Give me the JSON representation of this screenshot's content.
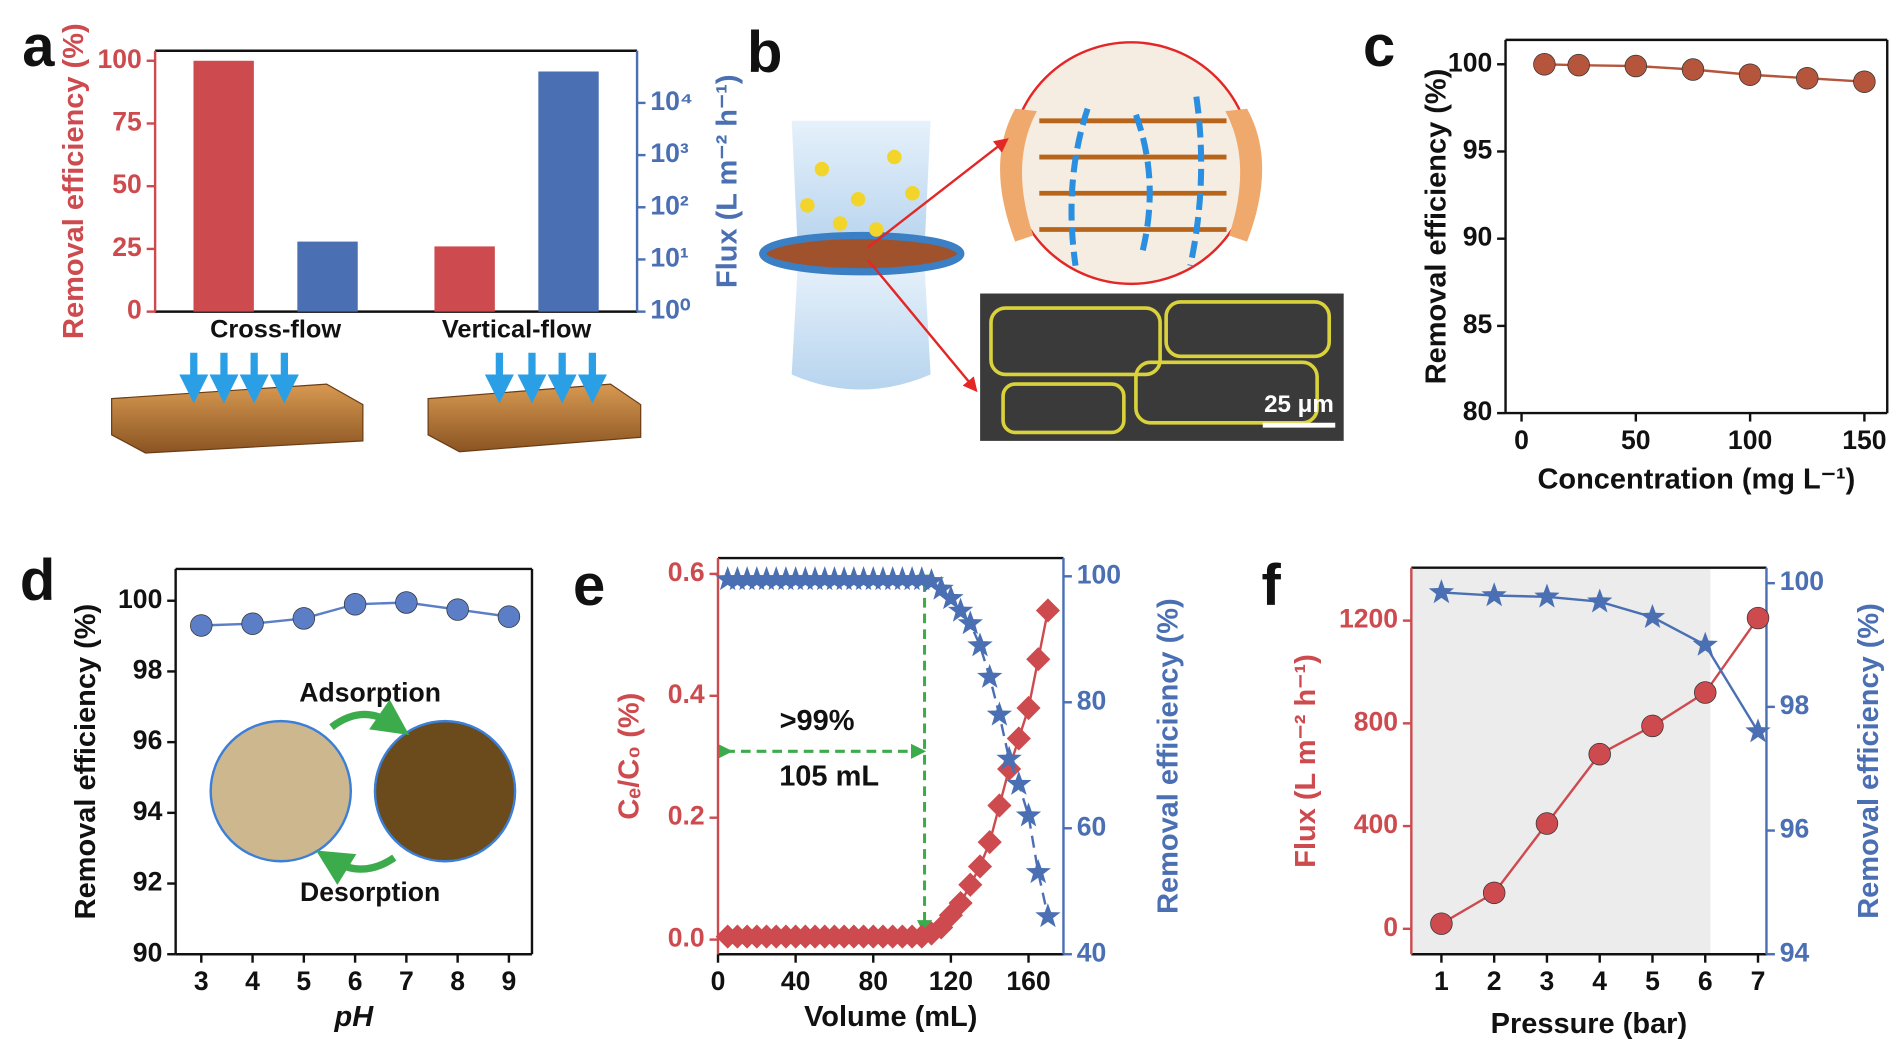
{
  "chart_data": [
    {
      "panel": "a",
      "type": "bar",
      "categories": [
        "Cross-flow",
        "Vertical-flow"
      ],
      "ylabel": "Removal efficiency (%)",
      "y2label": "Flux (L m⁻² h⁻¹)",
      "ylim": [
        0,
        104
      ],
      "yticks": [
        0,
        25,
        50,
        75,
        100
      ],
      "y2lim": [
        1,
        100000
      ],
      "y2_log": true,
      "y2ticks": [
        {
          "value": 1,
          "label": "10⁰"
        },
        {
          "value": 10,
          "label": "10¹"
        },
        {
          "value": 100,
          "label": "10²"
        },
        {
          "value": 1000,
          "label": "10³"
        },
        {
          "value": 10000,
          "label": "10⁴"
        }
      ],
      "series": [
        {
          "color": "#cd4b4f",
          "values": [
            100,
            26
          ]
        },
        {
          "color": "#4a6fb3",
          "values": [
            22,
            40000
          ],
          "axis": "y2"
        }
      ]
    },
    {
      "panel": "b",
      "type": "diagram",
      "scale_bar": "25 μm"
    },
    {
      "panel": "c",
      "type": "line",
      "xlabel": "Concentration (mg L⁻¹)",
      "ylabel": "Removal efficiency (%)",
      "x": [
        10,
        25,
        50,
        75,
        100,
        125,
        150
      ],
      "xlim": [
        -7,
        160
      ],
      "xticks": [
        0,
        50,
        100,
        150
      ],
      "ylim": [
        80,
        101.4
      ],
      "yticks": [
        80,
        85,
        90,
        95,
        100
      ],
      "series": [
        {
          "color": "#b4553c",
          "marker": "circle",
          "values": [
            100,
            99.95,
            99.9,
            99.7,
            99.4,
            99.2,
            99.0
          ]
        }
      ]
    },
    {
      "panel": "d",
      "type": "line",
      "xlabel": "pH",
      "ylabel": "Removal efficiency (%)",
      "x": [
        3,
        4,
        5,
        6,
        7,
        8,
        9
      ],
      "xlim": [
        2.5,
        9.45
      ],
      "xticks": [
        3,
        4,
        5,
        6,
        7,
        8,
        9
      ],
      "ylim": [
        90,
        100.9
      ],
      "yticks": [
        90,
        92,
        94,
        96,
        98,
        100
      ],
      "annotations": [
        "Adsorption",
        "Desorption"
      ],
      "series": [
        {
          "color": "#5b7ec7",
          "marker": "circle",
          "values": [
            99.3,
            99.35,
            99.5,
            99.9,
            99.95,
            99.75,
            99.55
          ]
        }
      ]
    },
    {
      "panel": "e",
      "type": "line",
      "xlabel": "Volume (mL)",
      "ylabel": "Cₑ/C₀ (%)",
      "y2label": "Removal efficiency (%)",
      "x": [
        5,
        10,
        15,
        20,
        25,
        30,
        35,
        40,
        45,
        50,
        55,
        60,
        65,
        70,
        75,
        80,
        85,
        90,
        95,
        100,
        105,
        110,
        115,
        120,
        125,
        130,
        135,
        140,
        145,
        150,
        155,
        160,
        165,
        170
      ],
      "xlim": [
        0,
        178
      ],
      "xticks": [
        0,
        40,
        80,
        120,
        160
      ],
      "ylim": [
        -0.024,
        0.626
      ],
      "yticks": [
        {
          "value": 0,
          "label": "0.0"
        },
        0.2,
        0.4,
        0.6
      ],
      "y2lim": [
        40,
        102.9
      ],
      "y2ticks": [
        40,
        60,
        80,
        100
      ],
      "annotations": [
        ">99%",
        "105 mL"
      ],
      "series": [
        {
          "color": "#cd4b4f",
          "marker": "diamond",
          "values": [
            0.005,
            0.005,
            0.005,
            0.005,
            0.005,
            0.005,
            0.005,
            0.005,
            0.005,
            0.005,
            0.005,
            0.005,
            0.005,
            0.005,
            0.005,
            0.005,
            0.005,
            0.005,
            0.005,
            0.005,
            0.005,
            0.01,
            0.02,
            0.04,
            0.06,
            0.09,
            0.12,
            0.16,
            0.22,
            0.28,
            0.33,
            0.38,
            0.46,
            0.54
          ]
        },
        {
          "color": "#4a6fb3",
          "marker": "star",
          "linestyle": "dashed",
          "axis": "y2",
          "values": [
            99.5,
            99.5,
            99.5,
            99.5,
            99.5,
            99.5,
            99.5,
            99.5,
            99.5,
            99.5,
            99.5,
            99.5,
            99.5,
            99.5,
            99.5,
            99.5,
            99.5,
            99.5,
            99.5,
            99.5,
            99.5,
            99.2,
            98,
            96.5,
            94.5,
            92.5,
            89,
            84,
            78,
            71,
            67,
            62,
            53,
            46
          ]
        }
      ]
    },
    {
      "panel": "f",
      "type": "line",
      "xlabel": "Pressure (bar)",
      "ylabel": "Flux (L m⁻² h⁻¹)",
      "y2label": "Removal efficiency (%)",
      "x": [
        1,
        2,
        3,
        4,
        5,
        6,
        7
      ],
      "xlim": [
        0.43,
        7.16
      ],
      "xticks": [
        1,
        2,
        3,
        4,
        5,
        6,
        7
      ],
      "ylim": [
        -99,
        1406
      ],
      "yticks": [
        0,
        400,
        800,
        1200
      ],
      "y2lim": [
        94,
        100.25
      ],
      "y2ticks": [
        94,
        96,
        98,
        100
      ],
      "shade_xlim": [
        0.43,
        6.1
      ],
      "series": [
        {
          "color": "#cd4b4f",
          "marker": "circle",
          "values": [
            20,
            140,
            410,
            680,
            790,
            920,
            1210
          ]
        },
        {
          "color": "#4a6fb3",
          "marker": "star",
          "axis": "y2",
          "values": [
            99.85,
            99.8,
            99.78,
            99.7,
            99.45,
            99.0,
            97.6
          ]
        }
      ]
    }
  ]
}
